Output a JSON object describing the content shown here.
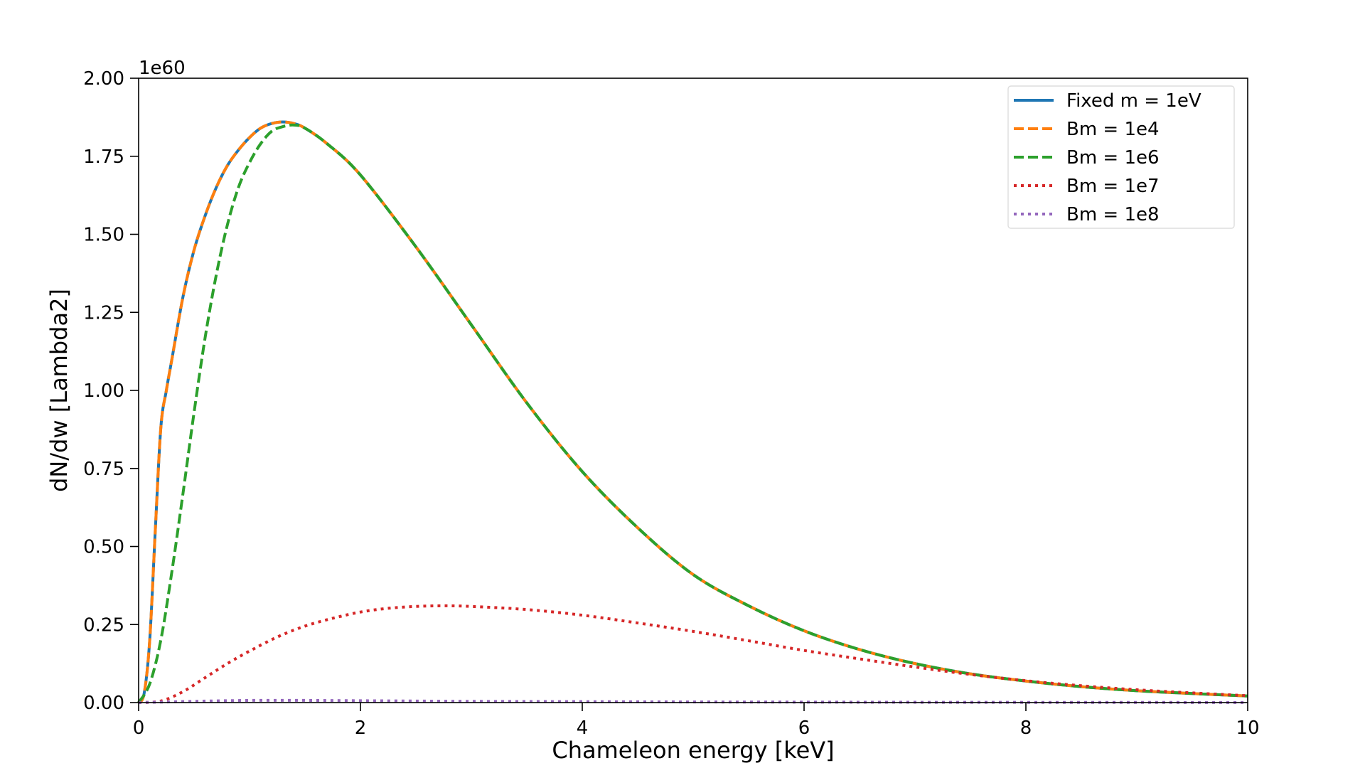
{
  "chart_data": {
    "type": "line",
    "title": "",
    "xlabel": "Chameleon energy [keV]",
    "ylabel": "dN/dw [Lambda2]",
    "y_offset_label": "1e60",
    "xlim": [
      0,
      10
    ],
    "ylim": [
      0,
      2.0
    ],
    "x_ticks": [
      0,
      2,
      4,
      6,
      8,
      10
    ],
    "x_tick_labels": [
      "0",
      "2",
      "4",
      "6",
      "8",
      "10"
    ],
    "y_ticks": [
      0,
      0.25,
      0.5,
      0.75,
      1.0,
      1.25,
      1.5,
      1.75,
      2.0
    ],
    "y_tick_labels": [
      "0.00",
      "0.25",
      "0.50",
      "0.75",
      "1.00",
      "1.25",
      "1.50",
      "1.75",
      "2.00"
    ],
    "grid": false,
    "legend_position": "top-right",
    "series": [
      {
        "name": "Fixed m = 1eV",
        "color": "#1f77b4",
        "style": "solid",
        "x": [
          0,
          0.05,
          0.1,
          0.15,
          0.2,
          0.25,
          0.3,
          0.4,
          0.5,
          0.6,
          0.7,
          0.8,
          0.9,
          1.0,
          1.1,
          1.2,
          1.3,
          1.4,
          1.5,
          1.7,
          2.0,
          2.5,
          3.0,
          3.5,
          4.0,
          4.5,
          5.0,
          5.5,
          6.0,
          6.5,
          7.0,
          7.5,
          8.0,
          8.5,
          9.0,
          9.5,
          10.0
        ],
        "y": [
          0,
          0.03,
          0.2,
          0.55,
          0.88,
          1.0,
          1.1,
          1.3,
          1.45,
          1.56,
          1.65,
          1.72,
          1.77,
          1.81,
          1.84,
          1.855,
          1.86,
          1.855,
          1.84,
          1.79,
          1.69,
          1.46,
          1.21,
          0.96,
          0.74,
          0.56,
          0.41,
          0.31,
          0.23,
          0.17,
          0.125,
          0.092,
          0.069,
          0.051,
          0.038,
          0.029,
          0.021
        ]
      },
      {
        "name": "Bm = 1e4",
        "color": "#ff7f0e",
        "style": "dashed",
        "x": [
          0,
          0.05,
          0.1,
          0.15,
          0.2,
          0.25,
          0.3,
          0.4,
          0.5,
          0.6,
          0.7,
          0.8,
          0.9,
          1.0,
          1.1,
          1.2,
          1.3,
          1.4,
          1.5,
          1.7,
          2.0,
          2.5,
          3.0,
          3.5,
          4.0,
          4.5,
          5.0,
          5.5,
          6.0,
          6.5,
          7.0,
          7.5,
          8.0,
          8.5,
          9.0,
          9.5,
          10.0
        ],
        "y": [
          0,
          0.03,
          0.2,
          0.55,
          0.88,
          1.0,
          1.1,
          1.3,
          1.45,
          1.56,
          1.65,
          1.72,
          1.77,
          1.81,
          1.84,
          1.855,
          1.86,
          1.855,
          1.84,
          1.79,
          1.69,
          1.46,
          1.21,
          0.96,
          0.74,
          0.56,
          0.41,
          0.31,
          0.23,
          0.17,
          0.125,
          0.092,
          0.069,
          0.051,
          0.038,
          0.029,
          0.021
        ]
      },
      {
        "name": "Bm = 1e6",
        "color": "#2ca02c",
        "style": "dashed",
        "x": [
          0,
          0.1,
          0.2,
          0.3,
          0.4,
          0.5,
          0.6,
          0.7,
          0.8,
          0.9,
          1.0,
          1.1,
          1.2,
          1.3,
          1.4,
          1.5,
          1.7,
          2.0,
          2.5,
          3.0,
          3.5,
          4.0,
          4.5,
          5.0,
          5.5,
          6.0,
          6.5,
          7.0,
          7.5,
          8.0,
          8.5,
          9.0,
          9.5,
          10.0
        ],
        "y": [
          0,
          0.06,
          0.2,
          0.42,
          0.67,
          0.93,
          1.17,
          1.37,
          1.53,
          1.65,
          1.73,
          1.79,
          1.83,
          1.845,
          1.85,
          1.84,
          1.79,
          1.69,
          1.46,
          1.21,
          0.96,
          0.74,
          0.56,
          0.41,
          0.31,
          0.23,
          0.17,
          0.125,
          0.092,
          0.069,
          0.051,
          0.038,
          0.029,
          0.021
        ]
      },
      {
        "name": "Bm = 1e7",
        "color": "#d62728",
        "style": "dotted",
        "x": [
          0,
          0.2,
          0.4,
          0.6,
          0.8,
          1.0,
          1.25,
          1.5,
          1.75,
          2.0,
          2.25,
          2.5,
          2.75,
          3.0,
          3.5,
          4.0,
          4.5,
          5.0,
          5.5,
          6.0,
          6.5,
          7.0,
          7.5,
          8.0,
          8.5,
          9.0,
          9.5,
          10.0
        ],
        "y": [
          0,
          0.005,
          0.035,
          0.08,
          0.125,
          0.165,
          0.21,
          0.245,
          0.27,
          0.29,
          0.302,
          0.308,
          0.31,
          0.308,
          0.298,
          0.28,
          0.255,
          0.228,
          0.198,
          0.167,
          0.14,
          0.114,
          0.09,
          0.07,
          0.054,
          0.041,
          0.031,
          0.022
        ]
      },
      {
        "name": "Bm = 1e8",
        "color": "#9467bd",
        "style": "dotted",
        "x": [
          0,
          0.5,
          1.0,
          1.5,
          2.0,
          3.0,
          4.0,
          5.0,
          6.0,
          7.0,
          8.0,
          9.0,
          10.0
        ],
        "y": [
          0,
          0.004,
          0.007,
          0.007,
          0.006,
          0.004,
          0.003,
          0.002,
          0.0015,
          0.001,
          0.0007,
          0.0005,
          0.0003
        ]
      }
    ]
  }
}
